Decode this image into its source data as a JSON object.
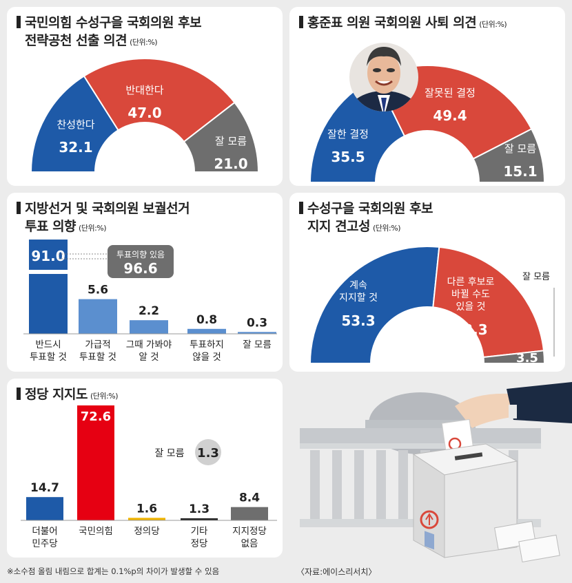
{
  "colors": {
    "blue": "#1e5aa8",
    "red": "#d9483b",
    "gray": "#6e6e6e",
    "light_blue": "#5b8fcf",
    "bright_red": "#e60012",
    "yellow": "#f0b400"
  },
  "panel1": {
    "title_line1": "국민의힘 수성구을 국회의원 후보",
    "title_line2": "전략공천 선출 의견",
    "unit": "(단위:%)"
  },
  "panel2": {
    "title": "홍준표 의원 국회의원 사퇴 의견",
    "unit": "(단위:%)"
  },
  "panel3": {
    "title_line1": "지방선거 및 국회의원 보궐선거",
    "title_line2": "투표 의향",
    "unit": "(단위:%)",
    "callout_label": "투표의향 있음",
    "callout_value": "96.6"
  },
  "panel4": {
    "title_line1": "수성구을 국회의원 후보",
    "title_line2": "지지 견고성",
    "unit": "(단위:%)"
  },
  "panel5": {
    "title": "정당 지지도",
    "unit": "(단위:%)",
    "note_label": "잘 모름",
    "note_value": "1.3"
  },
  "footnote": "※소수점 올림 내림으로 합계는 0.1%p의 차이가 발생할 수 있음",
  "source": "〈자료:에이스리서치〉",
  "chart_data": [
    {
      "type": "pie",
      "title": "국민의힘 수성구을 국회의원 후보 전략공천 선출 의견",
      "slices": [
        {
          "label": "찬성한다",
          "value": 32.1,
          "color": "#1e5aa8"
        },
        {
          "label": "반대한다",
          "value": 47.0,
          "color": "#d9483b"
        },
        {
          "label": "잘 모름",
          "value": 21.0,
          "color": "#6e6e6e"
        }
      ]
    },
    {
      "type": "pie",
      "title": "홍준표 의원 국회의원 사퇴 의견",
      "slices": [
        {
          "label": "잘한 결정",
          "value": 35.5,
          "color": "#1e5aa8"
        },
        {
          "label": "잘못된 결정",
          "value": 49.4,
          "color": "#d9483b"
        },
        {
          "label": "잘 모름",
          "value": 15.1,
          "color": "#6e6e6e"
        }
      ]
    },
    {
      "type": "bar",
      "title": "지방선거 및 국회의원 보궐선거 투표 의향",
      "categories": [
        "반드시 투표할 것",
        "가급적 투표할 것",
        "그때 가봐야 알 것",
        "투표하지 않을 것",
        "잘 모름"
      ],
      "values": [
        91.0,
        5.6,
        2.2,
        0.8,
        0.3
      ]
    },
    {
      "type": "pie",
      "title": "수성구을 국회의원 후보 지지 견고성",
      "slices": [
        {
          "label": "계속 지지할 것",
          "value": 53.3,
          "color": "#1e5aa8"
        },
        {
          "label": "다른 후보로 바뀔 수도 있을 것",
          "value": 43.3,
          "color": "#d9483b"
        },
        {
          "label": "잘 모름",
          "value": 3.5,
          "color": "#6e6e6e"
        }
      ]
    },
    {
      "type": "bar",
      "title": "정당 지지도",
      "categories": [
        "더불어 민주당",
        "국민의힘",
        "정의당",
        "기타 정당",
        "지지정당 없음"
      ],
      "values": [
        14.7,
        72.6,
        1.6,
        1.3,
        8.4
      ],
      "colors": [
        "#1e5aa8",
        "#e60012",
        "#f0b400",
        "#222222",
        "#6e6e6e"
      ]
    }
  ]
}
